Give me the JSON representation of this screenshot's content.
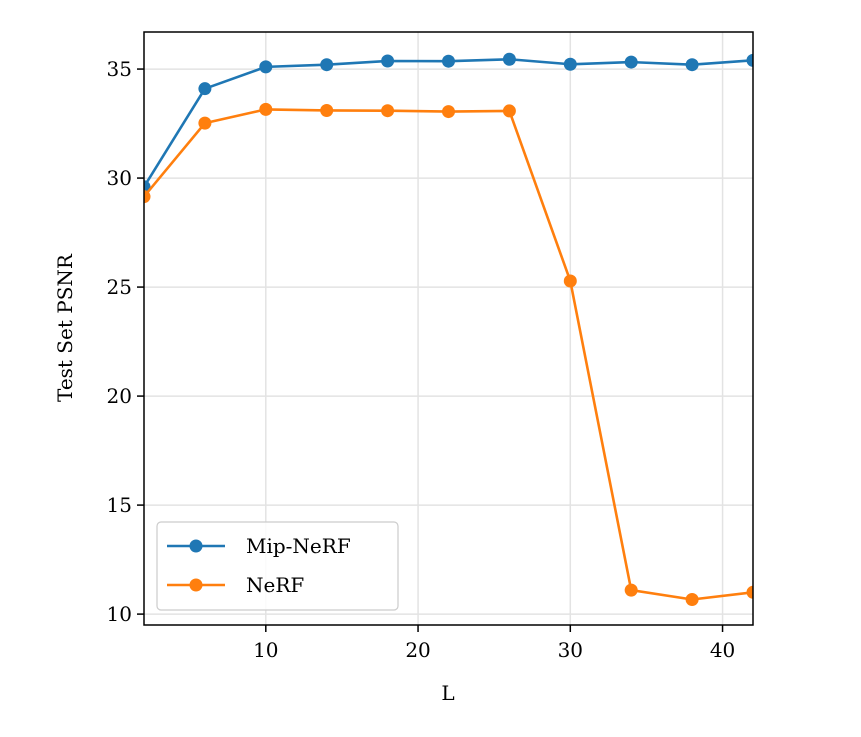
{
  "chart_data": {
    "type": "line",
    "title": "",
    "xlabel": "L",
    "ylabel": "Test Set PSNR",
    "xlim": [
      2,
      42
    ],
    "ylim": [
      9.5,
      36.7
    ],
    "xticks": [
      10,
      20,
      30,
      40
    ],
    "yticks": [
      10,
      15,
      20,
      25,
      30,
      35
    ],
    "grid": true,
    "legend_position": "lower-left",
    "x": [
      2,
      6,
      10,
      14,
      18,
      22,
      26,
      30,
      34,
      38,
      42
    ],
    "series": [
      {
        "name": "Mip-NeRF",
        "color": "#1f77b4",
        "values": [
          29.6,
          34.1,
          35.1,
          35.2,
          35.37,
          35.36,
          35.45,
          35.22,
          35.32,
          35.2,
          35.4
        ]
      },
      {
        "name": "NeRF",
        "color": "#ff7f0e",
        "values": [
          29.15,
          32.52,
          33.15,
          33.1,
          33.09,
          33.05,
          33.08,
          25.28,
          11.1,
          10.67,
          11.0
        ]
      }
    ]
  }
}
